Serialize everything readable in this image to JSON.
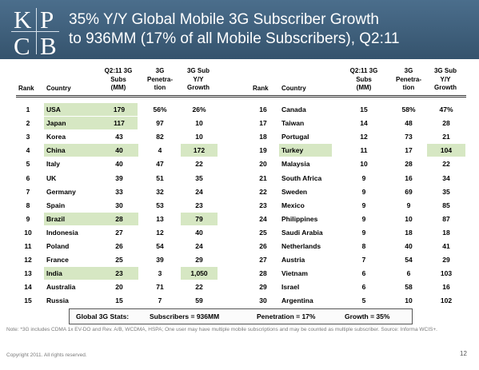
{
  "logo": {
    "letters": [
      "K",
      "P",
      "C",
      "B"
    ]
  },
  "title": {
    "line1": "35% Y/Y Global Mobile 3G Subscriber Growth",
    "line2": "to 936MM (17% of all Mobile Subscribers), Q2:11"
  },
  "headers": {
    "rank": "Rank",
    "country": "Country",
    "subs": [
      "Q2:11 3G",
      "Subs",
      "(MM)"
    ],
    "penetration": [
      "3G",
      "Penetra-",
      "tion"
    ],
    "growth": [
      "3G Sub",
      "Y/Y",
      "Growth"
    ]
  },
  "highlight_color": "#d6e7c3",
  "left_rows": [
    {
      "rank": "1",
      "country": "USA",
      "subs": "179",
      "pen": "56%",
      "growth": "26%",
      "hl_country": true,
      "hl_subs": true,
      "hl_growth": false
    },
    {
      "rank": "2",
      "country": "Japan",
      "subs": "117",
      "pen": "97",
      "growth": "10",
      "hl_country": true,
      "hl_subs": true,
      "hl_growth": false
    },
    {
      "rank": "3",
      "country": "Korea",
      "subs": "43",
      "pen": "82",
      "growth": "10",
      "hl_country": false,
      "hl_subs": false,
      "hl_growth": false
    },
    {
      "rank": "4",
      "country": "China",
      "subs": "40",
      "pen": "4",
      "growth": "172",
      "hl_country": true,
      "hl_subs": false,
      "hl_growth": true
    },
    {
      "rank": "5",
      "country": "Italy",
      "subs": "40",
      "pen": "47",
      "growth": "22",
      "hl_country": false,
      "hl_subs": false,
      "hl_growth": false
    },
    {
      "rank": "6",
      "country": "UK",
      "subs": "39",
      "pen": "51",
      "growth": "35",
      "hl_country": false,
      "hl_subs": false,
      "hl_growth": false
    },
    {
      "rank": "7",
      "country": "Germany",
      "subs": "33",
      "pen": "32",
      "growth": "24",
      "hl_country": false,
      "hl_subs": false,
      "hl_growth": false
    },
    {
      "rank": "8",
      "country": "Spain",
      "subs": "30",
      "pen": "53",
      "growth": "23",
      "hl_country": false,
      "hl_subs": false,
      "hl_growth": false
    },
    {
      "rank": "9",
      "country": "Brazil",
      "subs": "28",
      "pen": "13",
      "growth": "79",
      "hl_country": true,
      "hl_subs": false,
      "hl_growth": true
    },
    {
      "rank": "10",
      "country": "Indonesia",
      "subs": "27",
      "pen": "12",
      "growth": "40",
      "hl_country": false,
      "hl_subs": false,
      "hl_growth": false
    },
    {
      "rank": "11",
      "country": "Poland",
      "subs": "26",
      "pen": "54",
      "growth": "24",
      "hl_country": false,
      "hl_subs": false,
      "hl_growth": false
    },
    {
      "rank": "12",
      "country": "France",
      "subs": "25",
      "pen": "39",
      "growth": "29",
      "hl_country": false,
      "hl_subs": false,
      "hl_growth": false
    },
    {
      "rank": "13",
      "country": "India",
      "subs": "23",
      "pen": "3",
      "growth": "1,050",
      "hl_country": true,
      "hl_subs": false,
      "hl_growth": true
    },
    {
      "rank": "14",
      "country": "Australia",
      "subs": "20",
      "pen": "71",
      "growth": "22",
      "hl_country": false,
      "hl_subs": false,
      "hl_growth": false
    },
    {
      "rank": "15",
      "country": "Russia",
      "subs": "15",
      "pen": "7",
      "growth": "59",
      "hl_country": false,
      "hl_subs": false,
      "hl_growth": false
    }
  ],
  "right_rows": [
    {
      "rank": "16",
      "country": "Canada",
      "subs": "15",
      "pen": "58%",
      "growth": "47%",
      "hl_country": false,
      "hl_subs": false,
      "hl_growth": false
    },
    {
      "rank": "17",
      "country": "Taiwan",
      "subs": "14",
      "pen": "48",
      "growth": "28",
      "hl_country": false,
      "hl_subs": false,
      "hl_growth": false
    },
    {
      "rank": "18",
      "country": "Portugal",
      "subs": "12",
      "pen": "73",
      "growth": "21",
      "hl_country": false,
      "hl_subs": false,
      "hl_growth": false
    },
    {
      "rank": "19",
      "country": "Turkey",
      "subs": "11",
      "pen": "17",
      "growth": "104",
      "hl_country": true,
      "hl_subs": false,
      "hl_growth": true
    },
    {
      "rank": "20",
      "country": "Malaysia",
      "subs": "10",
      "pen": "28",
      "growth": "22",
      "hl_country": false,
      "hl_subs": false,
      "hl_growth": false
    },
    {
      "rank": "21",
      "country": "South Africa",
      "subs": "9",
      "pen": "16",
      "growth": "34",
      "hl_country": false,
      "hl_subs": false,
      "hl_growth": false
    },
    {
      "rank": "22",
      "country": "Sweden",
      "subs": "9",
      "pen": "69",
      "growth": "35",
      "hl_country": false,
      "hl_subs": false,
      "hl_growth": false
    },
    {
      "rank": "23",
      "country": "Mexico",
      "subs": "9",
      "pen": "9",
      "growth": "85",
      "hl_country": false,
      "hl_subs": false,
      "hl_growth": false
    },
    {
      "rank": "24",
      "country": "Philippines",
      "subs": "9",
      "pen": "10",
      "growth": "87",
      "hl_country": false,
      "hl_subs": false,
      "hl_growth": false
    },
    {
      "rank": "25",
      "country": "Saudi Arabia",
      "subs": "9",
      "pen": "18",
      "growth": "18",
      "hl_country": false,
      "hl_subs": false,
      "hl_growth": false
    },
    {
      "rank": "26",
      "country": "Netherlands",
      "subs": "8",
      "pen": "40",
      "growth": "41",
      "hl_country": false,
      "hl_subs": false,
      "hl_growth": false
    },
    {
      "rank": "27",
      "country": "Austria",
      "subs": "7",
      "pen": "54",
      "growth": "29",
      "hl_country": false,
      "hl_subs": false,
      "hl_growth": false
    },
    {
      "rank": "28",
      "country": "Vietnam",
      "subs": "6",
      "pen": "6",
      "growth": "103",
      "hl_country": false,
      "hl_subs": false,
      "hl_growth": false
    },
    {
      "rank": "29",
      "country": "Israel",
      "subs": "6",
      "pen": "58",
      "growth": "16",
      "hl_country": false,
      "hl_subs": false,
      "hl_growth": false
    },
    {
      "rank": "30",
      "country": "Argentina",
      "subs": "5",
      "pen": "10",
      "growth": "102",
      "hl_country": false,
      "hl_subs": false,
      "hl_growth": false
    }
  ],
  "stats": {
    "label": "Global 3G Stats:",
    "subscribers": "Subscribers = 936MM",
    "penetration": "Penetration = 17%",
    "growth": "Growth = 35%"
  },
  "note": "Note: *3G includes CDMA 1x EV-DO and Rev. A/B, WCDMA, HSPA; One user may have multiple mobile subscriptions and may be counted as multiple subscriber.  Source: Informa WCIS+.",
  "copyright": "Copyright 2011. All rights reserved.",
  "page_number": "12"
}
